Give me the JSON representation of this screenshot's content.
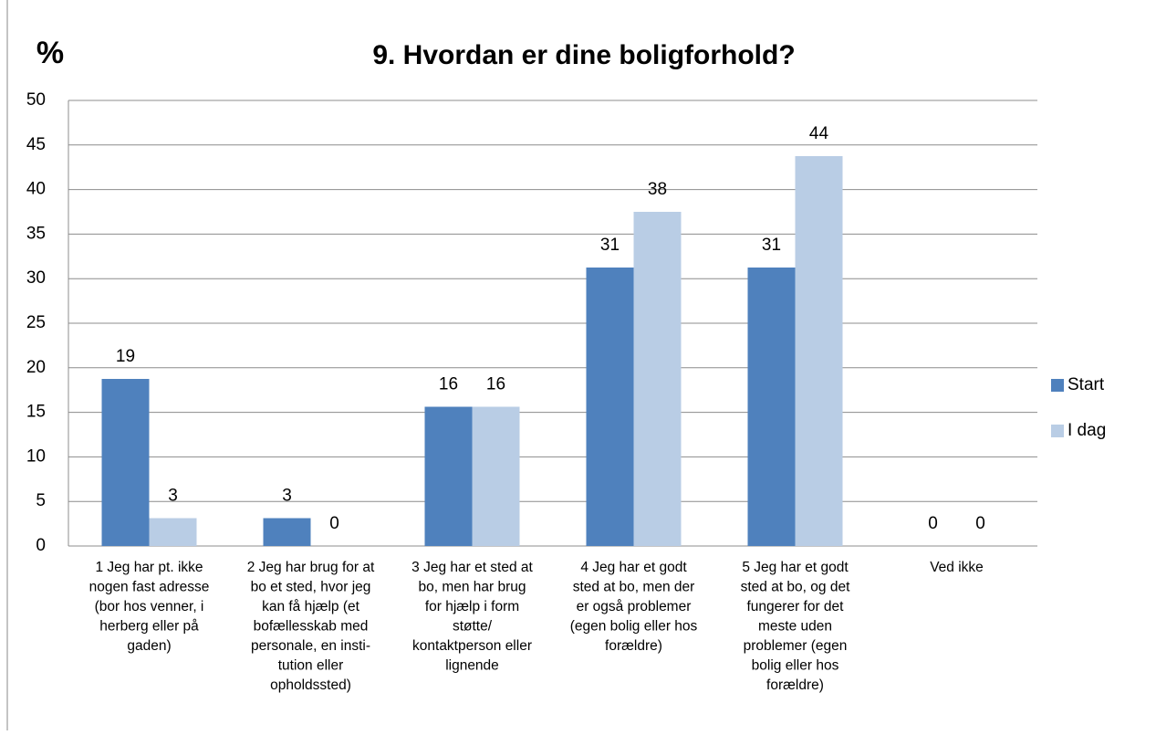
{
  "chart_data": {
    "type": "bar",
    "title": "9. Hvordan er dine boligforhold?",
    "y_label": "%",
    "categories": [
      "1 Jeg har pt. ikke\nnogen fast adresse\n(bor hos venner, i\nherberg eller på\ngaden)",
      "2 Jeg har brug for at\nbo et sted, hvor jeg\nkan få hjælp (et\nbofællesskab med\npersonale, en insti-\ntution eller\nopholdssted)",
      "3 Jeg har et sted at\nbo, men har brug\nfor hjælp i form\nstøtte/\nkontaktperson eller\nlignende",
      "4 Jeg har et godt\nsted at bo, men der\ner også problemer\n(egen bolig eller hos\nforældre)",
      "5 Jeg har et godt\nsted at bo, og det\nfungerer for det\nmeste uden\nproblemer (egen\nbolig eller hos\nforældre)",
      "Ved ikke"
    ],
    "series": [
      {
        "name": "Start",
        "color": "#4f81bd",
        "values": [
          18.75,
          3.125,
          15.625,
          31.25,
          31.25,
          0
        ],
        "value_labels": [
          "19",
          "3",
          "16",
          "31",
          "31",
          "0"
        ]
      },
      {
        "name": "I dag",
        "color": "#b9cde5",
        "values": [
          3.125,
          0,
          15.625,
          37.5,
          43.75,
          0
        ],
        "value_labels": [
          "3",
          "0",
          "16",
          "38",
          "44",
          "0"
        ]
      }
    ],
    "ylim": [
      0,
      50
    ],
    "yticks": [
      0,
      5,
      10,
      15,
      20,
      25,
      30,
      35,
      40,
      45,
      50
    ],
    "grid": true,
    "legend": "right"
  }
}
